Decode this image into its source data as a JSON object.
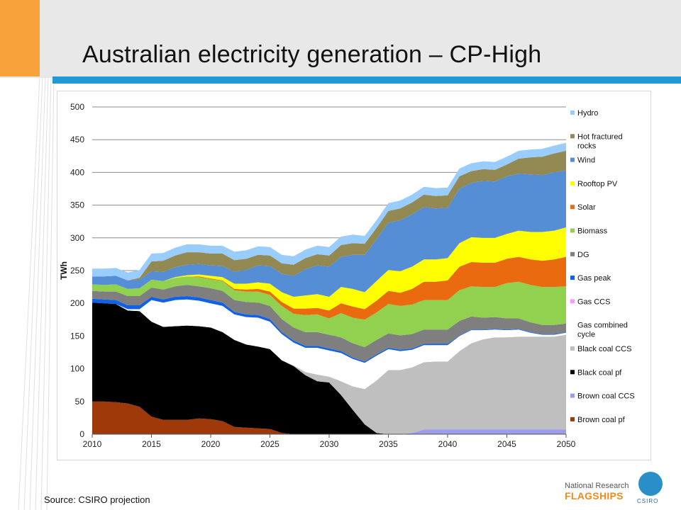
{
  "slide": {
    "title": "Australian electricity generation – CP-High",
    "source": "Source: CSIRO projection"
  },
  "logo": {
    "line1": "National Research",
    "line2": "FLAGSHIPS",
    "badge_text": "CSIRO"
  },
  "chart_data": {
    "type": "area",
    "stacked": true,
    "title": "",
    "xlabel": "",
    "ylabel": "TWh",
    "xlim": [
      2010,
      2050
    ],
    "ylim": [
      0,
      500
    ],
    "xticks": [
      2010,
      2015,
      2020,
      2025,
      2030,
      2035,
      2040,
      2045,
      2050
    ],
    "yticks": [
      0,
      50,
      100,
      150,
      200,
      250,
      300,
      350,
      400,
      450,
      500
    ],
    "grid": "horizontal",
    "legend_position": "right",
    "x": [
      2010,
      2011,
      2012,
      2013,
      2014,
      2015,
      2016,
      2017,
      2018,
      2019,
      2020,
      2021,
      2022,
      2023,
      2024,
      2025,
      2026,
      2027,
      2028,
      2029,
      2030,
      2031,
      2032,
      2033,
      2034,
      2035,
      2036,
      2037,
      2038,
      2039,
      2040,
      2041,
      2042,
      2043,
      2044,
      2045,
      2046,
      2047,
      2048,
      2049,
      2050
    ],
    "series": [
      {
        "name": "Brown coal pf",
        "color": "#a0390a",
        "values": [
          50,
          50,
          49,
          47,
          42,
          27,
          22,
          22,
          22,
          24,
          23,
          20,
          11,
          10,
          9,
          8,
          2,
          0,
          0,
          0,
          0,
          0,
          0,
          0,
          0,
          0,
          0,
          0,
          0,
          0,
          0,
          0,
          0,
          0,
          0,
          0,
          0,
          0,
          0,
          0,
          0
        ]
      },
      {
        "name": "Brown coal CCS",
        "color": "#9b9bf0",
        "values": [
          0,
          0,
          0,
          0,
          0,
          0,
          0,
          0,
          0,
          0,
          0,
          0,
          0,
          0,
          0,
          0,
          0,
          0,
          0,
          0,
          0,
          0,
          0,
          0,
          0,
          0,
          0,
          2,
          7,
          7,
          7,
          7,
          7,
          7,
          7,
          7,
          7,
          7,
          7,
          7,
          7
        ]
      },
      {
        "name": "Black coal pf",
        "color": "#000000",
        "values": [
          151,
          150,
          150,
          142,
          146,
          145,
          142,
          143,
          144,
          141,
          140,
          136,
          133,
          127,
          125,
          122,
          111,
          104,
          90,
          81,
          79,
          60,
          37,
          15,
          2,
          0,
          0,
          0,
          0,
          0,
          0,
          0,
          0,
          0,
          0,
          0,
          0,
          0,
          0,
          0,
          0
        ]
      },
      {
        "name": "Black coal CCS",
        "color": "#bfbfbf",
        "values": [
          0,
          0,
          0,
          0,
          0,
          0,
          0,
          0,
          0,
          0,
          0,
          0,
          0,
          0,
          0,
          0,
          0,
          1,
          5,
          10,
          9,
          21,
          36,
          54,
          80,
          98,
          98,
          100,
          103,
          104,
          104,
          120,
          132,
          138,
          141,
          141,
          142,
          142,
          142,
          142,
          145
        ]
      },
      {
        "name": "Gas combined cycle",
        "color": "#ffffff",
        "values": [
          0,
          0,
          0,
          2,
          3,
          33,
          37,
          40,
          40,
          39,
          37,
          40,
          39,
          42,
          44,
          42,
          40,
          35,
          37,
          41,
          40,
          43,
          42,
          40,
          38,
          32,
          29,
          27,
          26,
          25,
          25,
          23,
          20,
          14,
          12,
          11,
          11,
          6,
          3,
          3,
          3
        ]
      },
      {
        "name": "Gas CCS",
        "color": "#ff99ff",
        "values": [
          0,
          0,
          0,
          0,
          0,
          0,
          0,
          0,
          0,
          0,
          0,
          0,
          0,
          0,
          0,
          0,
          0,
          0,
          0,
          0,
          0,
          0,
          0,
          0,
          0,
          0,
          0,
          0,
          0,
          0,
          0,
          0,
          0,
          0,
          0,
          0,
          0,
          0,
          0,
          0,
          0
        ]
      },
      {
        "name": "Gas peak",
        "color": "#1060e8",
        "values": [
          6,
          6,
          6,
          6,
          6,
          5,
          5,
          5,
          5,
          5,
          5,
          5,
          4,
          4,
          4,
          4,
          3,
          3,
          3,
          3,
          3,
          3,
          2,
          2,
          2,
          2,
          2,
          2,
          2,
          2,
          2,
          1,
          1,
          1,
          1,
          1,
          1,
          1,
          1,
          1,
          1
        ]
      },
      {
        "name": "DG",
        "color": "#7f7f7f",
        "values": [
          12,
          12,
          13,
          14,
          14,
          14,
          15,
          16,
          17,
          17,
          18,
          18,
          18,
          19,
          19,
          20,
          20,
          20,
          21,
          21,
          21,
          21,
          22,
          22,
          22,
          22,
          22,
          22,
          22,
          22,
          22,
          22,
          20,
          18,
          18,
          17,
          16,
          15,
          14,
          14,
          13
        ]
      },
      {
        "name": "Biomass",
        "color": "#92d050",
        "values": [
          10,
          10,
          11,
          11,
          12,
          12,
          13,
          13,
          13,
          14,
          14,
          15,
          15,
          16,
          17,
          17,
          20,
          21,
          26,
          27,
          25,
          37,
          39,
          42,
          42,
          45,
          45,
          45,
          45,
          45,
          45,
          47,
          46,
          47,
          46,
          54,
          56,
          57,
          58,
          58,
          57
        ]
      },
      {
        "name": "Solar",
        "color": "#ea6a10",
        "values": [
          0,
          0,
          0,
          0,
          0,
          0,
          0,
          0,
          0,
          1,
          1,
          1,
          2,
          3,
          4,
          5,
          6,
          8,
          10,
          10,
          12,
          15,
          17,
          16,
          18,
          20,
          20,
          24,
          28,
          28,
          30,
          36,
          37,
          37,
          37,
          37,
          38,
          39,
          40,
          42,
          45
        ]
      },
      {
        "name": "Rooftop PV",
        "color": "#ffff00",
        "values": [
          0,
          0,
          0,
          0,
          0,
          0,
          0,
          1,
          2,
          3,
          4,
          5,
          8,
          9,
          10,
          12,
          15,
          18,
          20,
          21,
          21,
          25,
          27,
          26,
          30,
          32,
          33,
          34,
          34,
          34,
          34,
          36,
          38,
          38,
          38,
          38,
          40,
          42,
          44,
          44,
          45
        ]
      },
      {
        "name": "Wind",
        "color": "#558ed5",
        "values": [
          12,
          13,
          13,
          13,
          13,
          13,
          14,
          15,
          16,
          16,
          16,
          17,
          18,
          21,
          26,
          27,
          28,
          32,
          40,
          44,
          46,
          46,
          52,
          57,
          64,
          72,
          78,
          80,
          80,
          78,
          77,
          83,
          83,
          87,
          86,
          88,
          87,
          88,
          87,
          89,
          87
        ]
      },
      {
        "name": "Hot fractured rocks",
        "color": "#938953",
        "values": [
          0,
          0,
          0,
          0,
          3,
          15,
          17,
          18,
          19,
          18,
          18,
          19,
          18,
          17,
          16,
          16,
          16,
          17,
          17,
          17,
          17,
          18,
          18,
          17,
          17,
          18,
          18,
          18,
          19,
          19,
          19,
          19,
          18,
          18,
          18,
          18,
          23,
          26,
          28,
          29,
          30
        ]
      },
      {
        "name": "Hydro",
        "color": "#99ccff",
        "values": [
          12,
          12,
          12,
          12,
          12,
          12,
          12,
          12,
          12,
          12,
          12,
          12,
          13,
          13,
          13,
          13,
          13,
          13,
          13,
          13,
          13,
          13,
          13,
          12,
          12,
          12,
          12,
          12,
          12,
          12,
          12,
          12,
          12,
          12,
          12,
          12,
          12,
          12,
          12,
          12,
          12
        ]
      }
    ]
  }
}
